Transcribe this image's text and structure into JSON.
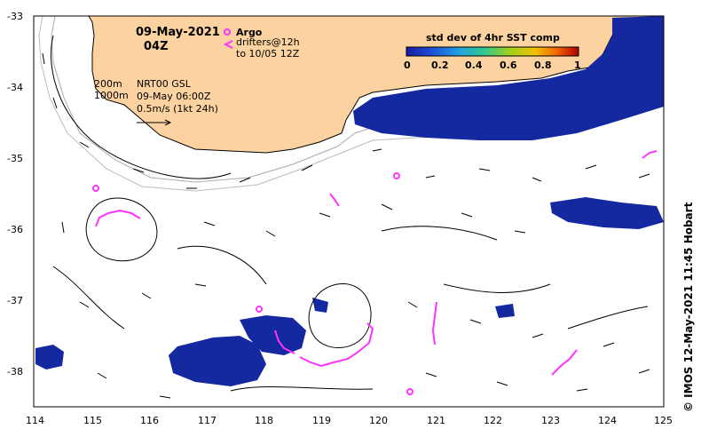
{
  "map": {
    "date": "09-May-2021",
    "time": "04Z",
    "legend": {
      "argo_label": "Argo",
      "drifters_label": "drifters@12h",
      "drifters_range": "to 10/05 12Z",
      "argo_color": "#ff33ff",
      "drifter_color": "#ff33ff"
    },
    "isobaths": [
      "200m",
      "1000m"
    ],
    "current_info": {
      "product": "NRT00 GSL",
      "valid": "09-May 06:00Z",
      "scale": "0.5m/s (1kt 24h)"
    },
    "colorbar": {
      "title": "std dev of 4hr SST comp",
      "ticks": [
        "0",
        "0.2",
        "0.4",
        "0.6",
        "0.8",
        "1"
      ],
      "colors": [
        "#1a1aa0",
        "#1e50d8",
        "#20a0e0",
        "#30c890",
        "#a0d020",
        "#f0c000",
        "#f06000",
        "#b00000"
      ]
    },
    "credit": "© IMOS 12-May-2021 11:45 Hobart",
    "x_ticks": [
      "114",
      "115",
      "116",
      "117",
      "118",
      "119",
      "120",
      "121",
      "122",
      "123",
      "124",
      "125"
    ],
    "y_ticks": [
      "-33",
      "-34",
      "-35",
      "-36",
      "-37",
      "-38"
    ],
    "land_color": "#fcd3a0",
    "sst_color": "#1428a0"
  }
}
